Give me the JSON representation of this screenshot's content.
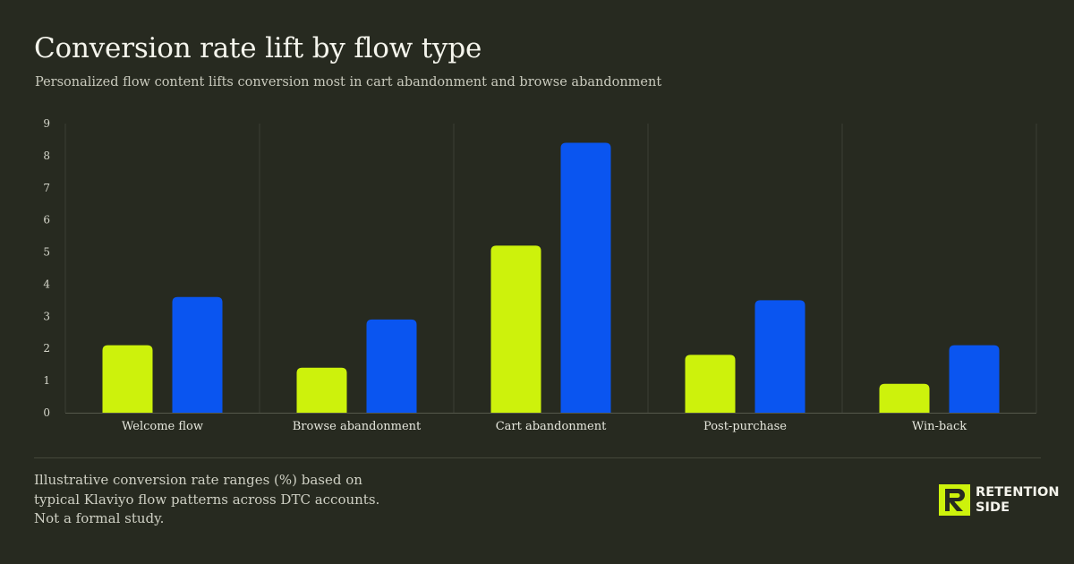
{
  "header": {
    "title": "Conversion rate lift by flow type",
    "subtitle": "Personalized flow content lifts conversion most in cart abandonment and browse abandonment"
  },
  "colors": {
    "background": "#272a20",
    "series_a": "#cdf20c",
    "series_b": "#0a55f0"
  },
  "chart_data": {
    "type": "bar",
    "categories": [
      "Welcome flow",
      "Browse abandonment",
      "Cart abandonment",
      "Post-purchase",
      "Win-back"
    ],
    "series": [
      {
        "values": [
          2.1,
          1.4,
          5.2,
          1.8,
          0.9
        ],
        "color": "#cdf20c"
      },
      {
        "values": [
          3.6,
          2.9,
          8.4,
          3.5,
          2.1
        ],
        "color": "#0a55f0"
      }
    ],
    "ylim": [
      0,
      9
    ],
    "yticks": [
      "0",
      "1",
      "2",
      "3",
      "4",
      "5",
      "6",
      "7",
      "8",
      "9"
    ],
    "xlabel": "",
    "ylabel": "",
    "grid": "vertical category separators",
    "legend": "none"
  },
  "footer": {
    "note_lines": [
      "Illustrative conversion rate ranges (%) based on",
      "typical Klaviyo flow patterns across DTC accounts.",
      "Not a formal study."
    ],
    "brand_line1": "RETENTION",
    "brand_line2": "SIDE",
    "brand_icon": "retention-side-logo-icon"
  }
}
